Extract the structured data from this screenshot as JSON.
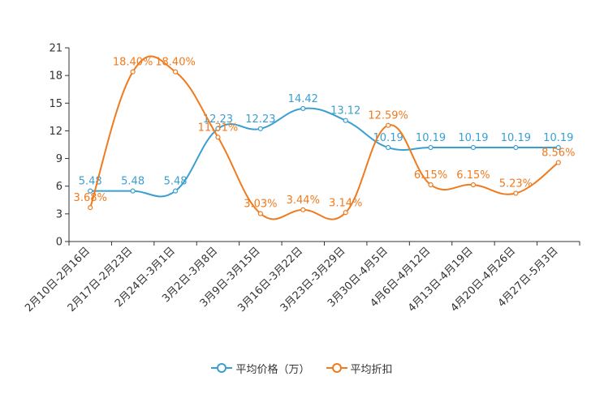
{
  "chart_data": {
    "type": "line",
    "categories": [
      "2月10日-2月16日",
      "2月17日-2月23日",
      "2月24日-3月1日",
      "3月2日-3月8日",
      "3月9日-3月15日",
      "3月16日-3月22日",
      "3月23日-3月29日",
      "3月30日-4月5日",
      "4月6日-4月12日",
      "4月13日-4月19日",
      "4月20日-4月26日",
      "4月27日-5月3日"
    ],
    "ylim": [
      0,
      21
    ],
    "yticks": [
      0,
      3,
      6,
      9,
      12,
      15,
      18,
      21
    ],
    "series": [
      {
        "name": "平均价格（万）",
        "color": "#3a9fd0",
        "values": [
          5.48,
          5.48,
          5.48,
          12.23,
          12.23,
          14.42,
          13.12,
          10.19,
          10.19,
          10.19,
          10.19,
          10.19
        ],
        "labels": [
          "5.48",
          "5.48",
          "5.48",
          "12.23",
          "12.23",
          "14.42",
          "13.12",
          "10.19",
          "10.19",
          "10.19",
          "10.19",
          "10.19"
        ]
      },
      {
        "name": "平均折扣",
        "color": "#f07a1e",
        "values": [
          3.68,
          18.4,
          18.4,
          11.31,
          3.03,
          3.44,
          3.14,
          12.59,
          6.15,
          6.15,
          5.23,
          8.56
        ],
        "labels": [
          "3.68%",
          "18.40%",
          "18.40%",
          "11.31%",
          "3.03%",
          "3.44%",
          "3.14%",
          "12.59%",
          "6.15%",
          "6.15%",
          "5.23%",
          "8.56%"
        ]
      }
    ]
  },
  "legend": {
    "price_label": "平均价格（万）",
    "discount_label": "平均折扣"
  }
}
